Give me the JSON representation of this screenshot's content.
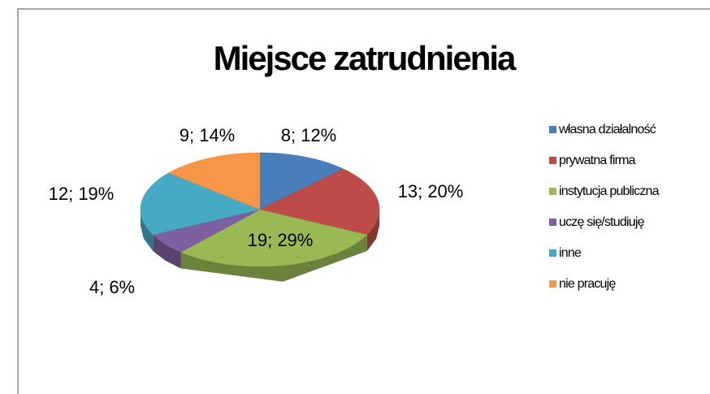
{
  "chart_data": {
    "type": "pie3d",
    "title": "Miejsce zatrudnienia",
    "categories": [
      "własna działalność",
      "prywatna firma",
      "instytucja publiczna",
      "uczę się/studiuję",
      "inne",
      "nie pracuję"
    ],
    "values": [
      8,
      13,
      19,
      4,
      12,
      9
    ],
    "value_labels": [
      "8; 12%",
      "13; 20%",
      "19; 29%",
      "4; 6%",
      "12; 19%",
      "9; 14%"
    ],
    "colors": [
      "#4a7ebb",
      "#be4b48",
      "#98b954",
      "#7d60a0",
      "#46aac5",
      "#f79646"
    ],
    "legend": "right"
  }
}
